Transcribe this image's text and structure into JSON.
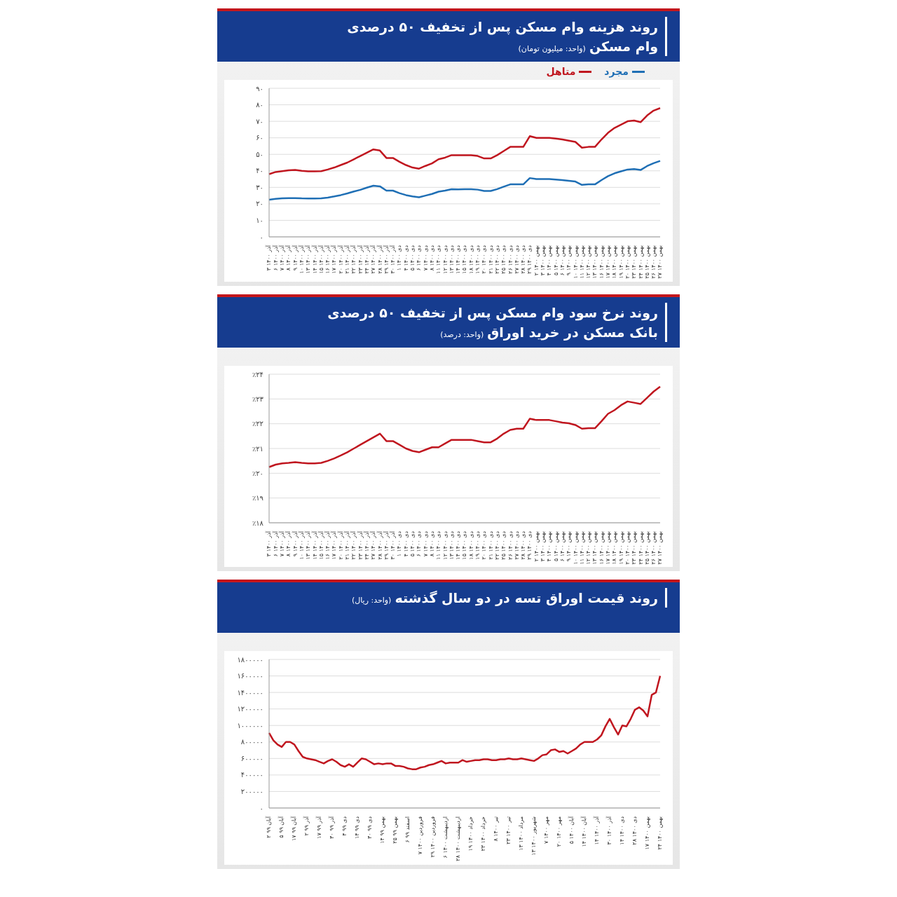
{
  "chart_data": [
    {
      "type": "line",
      "title": "روند هزینه وام مسکن پس از تخفیف ۵۰ درصدی وام مسکن",
      "subtitle": "(واحد: میلیون تومان)",
      "categories": [
        "۳ آذر ۱۴۰۰",
        "۶ آذر ۱۴۰۰",
        "۷ آذر ۱۴۰۰",
        "۸ آذر ۱۴۰۰",
        "۹ آذر ۱۴۰۰",
        "۱۰ آذر ۱۴۰۰",
        "۱۳ آذر ۱۴۰۰",
        "۱۴ آذر ۱۴۰۰",
        "۱۵ آذر ۱۴۰۰",
        "۱۶ آذر ۱۴۰۰",
        "۱۷ آذر ۱۴۰۰",
        "۲۰ آذر ۱۴۰۰",
        "۲۱ آذر ۱۴۰۰",
        "۲۲ آذر ۱۴۰۰",
        "۲۳ آذر ۱۴۰۰",
        "۲۴ آذر ۱۴۰۰",
        "۲۷ آذر ۱۴۰۰",
        "۲۸ آذر ۱۴۰۰",
        "۲۹ آذر ۱۴۰۰",
        "۳۰ آذر ۱۴۰۰",
        "۱ دی ۱۴۰۰",
        "۴ دی ۱۴۰۰",
        "۵ دی ۱۴۰۰",
        "۶ دی ۱۴۰۰",
        "۷ دی ۱۴۰۰",
        "۸ دی ۱۴۰۰",
        "۱۱ دی ۱۴۰۰",
        "۱۲ دی ۱۴۰۰",
        "۱۳ دی ۱۴۰۰",
        "۱۴ دی ۱۴۰۰",
        "۱۵ دی ۱۴۰۰",
        "۱۸ دی ۱۴۰۰",
        "۱۹ دی ۱۴۰۰",
        "۲۰ دی ۱۴۰۰",
        "۲۱ دی ۱۴۰۰",
        "۲۲ دی ۱۴۰۰",
        "۲۵ دی ۱۴۰۰",
        "۲۶ دی ۱۴۰۰",
        "۲۷ دی ۱۴۰۰",
        "۲۸ دی ۱۴۰۰",
        "۲۹ دی ۱۴۰۰",
        "۲ بهمن ۱۴۰۰",
        "۳ بهمن ۱۴۰۰",
        "۴ بهمن ۱۴۰۰",
        "۵ بهمن ۱۴۰۰",
        "۶ بهمن ۱۴۰۰",
        "۹ بهمن ۱۴۰۰",
        "۱۰ بهمن ۱۴۰۰",
        "۱۱ بهمن ۱۴۰۰",
        "۱۲ بهمن ۱۴۰۰",
        "۱۳ بهمن ۱۴۰۰",
        "۱۶ بهمن ۱۴۰۰",
        "۱۷ بهمن ۱۴۰۰",
        "۱۸ بهمن ۱۴۰۰",
        "۱۹ بهمن ۱۴۰۰",
        "۲۰ بهمن ۱۴۰۰",
        "۲۳ بهمن ۱۴۰۰",
        "۲۴ بهمن ۱۴۰۰",
        "۲۵ بهمن ۱۴۰۰",
        "۲۶ بهمن ۱۴۰۰",
        "۲۷ بهمن ۱۴۰۰"
      ],
      "series": [
        {
          "name": "مجرد",
          "color": "#1f6fb5",
          "values": [
            22.5,
            23,
            23.3,
            23.5,
            23.5,
            23.3,
            23.2,
            23.2,
            23.3,
            23.8,
            24.5,
            25.3,
            26.3,
            27.5,
            28.5,
            29.8,
            31,
            30.6,
            28,
            28,
            26.5,
            25.3,
            24.5,
            24,
            25,
            26,
            27.4,
            28,
            28.9,
            28.8,
            28.9,
            28.9,
            28.6,
            27.8,
            27.8,
            28.9,
            30.4,
            31.8,
            31.8,
            31.8,
            35.6,
            35,
            35,
            35,
            34.7,
            34.4,
            34,
            33.5,
            31.5,
            31.8,
            31.8,
            34.4,
            36.8,
            38.5,
            39.7,
            40.8,
            41.1,
            40.5,
            42.9,
            44.6,
            46
          ]
        },
        {
          "name": "متاهل",
          "color": "#c0161f",
          "values": [
            38,
            39.3,
            39.8,
            40.3,
            40.5,
            40,
            39.7,
            39.7,
            39.8,
            40.8,
            42,
            43.5,
            45,
            47,
            49,
            51,
            53,
            52.3,
            47.8,
            47.8,
            45.5,
            43.5,
            42,
            41.3,
            43,
            44.5,
            47,
            48,
            49.5,
            49.5,
            49.5,
            49.5,
            49,
            47.5,
            47.5,
            49.5,
            52,
            54.5,
            54.5,
            54.5,
            61,
            60,
            60,
            60,
            59.5,
            59,
            58.3,
            57.5,
            54,
            54.5,
            54.5,
            59,
            63,
            66,
            68,
            70,
            70.5,
            69.5,
            73.5,
            76.5,
            78
          ]
        }
      ],
      "ylim": [
        0,
        90
      ],
      "yticks": [
        {
          "value": 0,
          "label": "۰"
        },
        {
          "value": 10,
          "label": "۱۰"
        },
        {
          "value": 20,
          "label": "۲۰"
        },
        {
          "value": 30,
          "label": "۳۰"
        },
        {
          "value": 40,
          "label": "۴۰"
        },
        {
          "value": 50,
          "label": "۵۰"
        },
        {
          "value": 60,
          "label": "۶۰"
        },
        {
          "value": 70,
          "label": "۷۰"
        },
        {
          "value": 80,
          "label": "۸۰"
        },
        {
          "value": 90,
          "label": "۹۰"
        }
      ],
      "grid": "y",
      "legend": "top right"
    },
    {
      "type": "line",
      "title": "روند نرخ سود وام مسکن پس از تخفیف ۵۰ درصدی بانک مسکن در خرید اوراق",
      "subtitle": "(واحد: درصد)",
      "categories": [
        "۳ آذر ۱۴۰۰",
        "۶ آذر ۱۴۰۰",
        "۷ آذر ۱۴۰۰",
        "۸ آذر ۱۴۰۰",
        "۹ آذر ۱۴۰۰",
        "۱۰ آذر ۱۴۰۰",
        "۱۳ آذر ۱۴۰۰",
        "۱۴ آذر ۱۴۰۰",
        "۱۵ آذر ۱۴۰۰",
        "۱۶ آذر ۱۴۰۰",
        "۱۷ آذر ۱۴۰۰",
        "۲۰ آذر ۱۴۰۰",
        "۲۱ آذر ۱۴۰۰",
        "۲۲ آذر ۱۴۰۰",
        "۲۳ آذر ۱۴۰۰",
        "۲۴ آذر ۱۴۰۰",
        "۲۷ آذر ۱۴۰۰",
        "۲۸ آذر ۱۴۰۰",
        "۲۹ آذر ۱۴۰۰",
        "۳۰ آذر ۱۴۰۰",
        "۱ دی ۱۴۰۰",
        "۴ دی ۱۴۰۰",
        "۵ دی ۱۴۰۰",
        "۶ دی ۱۴۰۰",
        "۷ دی ۱۴۰۰",
        "۸ دی ۱۴۰۰",
        "۱۱ دی ۱۴۰۰",
        "۱۲ دی ۱۴۰۰",
        "۱۳ دی ۱۴۰۰",
        "۱۴ دی ۱۴۰۰",
        "۱۵ دی ۱۴۰۰",
        "۱۸ دی ۱۴۰۰",
        "۱۹ دی ۱۴۰۰",
        "۲۰ دی ۱۴۰۰",
        "۲۱ دی ۱۴۰۰",
        "۲۲ دی ۱۴۰۰",
        "۲۵ دی ۱۴۰۰",
        "۲۶ دی ۱۴۰۰",
        "۲۷ دی ۱۴۰۰",
        "۲۸ دی ۱۴۰۰",
        "۲۹ دی ۱۴۰۰",
        "۲ بهمن ۱۴۰۰",
        "۳ بهمن ۱۴۰۰",
        "۴ بهمن ۱۴۰۰",
        "۵ بهمن ۱۴۰۰",
        "۶ بهمن ۱۴۰۰",
        "۹ بهمن ۱۴۰۰",
        "۱۰ بهمن ۱۴۰۰",
        "۱۱ بهمن ۱۴۰۰",
        "۱۲ بهمن ۱۴۰۰",
        "۱۳ بهمن ۱۴۰۰",
        "۱۶ بهمن ۱۴۰۰",
        "۱۷ بهمن ۱۴۰۰",
        "۱۸ بهمن ۱۴۰۰",
        "۱۹ بهمن ۱۴۰۰",
        "۲۰ بهمن ۱۴۰۰",
        "۲۳ بهمن ۱۴۰۰",
        "۲۴ بهمن ۱۴۰۰",
        "۲۵ بهمن ۱۴۰۰",
        "۲۶ بهمن ۱۴۰۰",
        "۲۷ بهمن ۱۴۰۰"
      ],
      "series": [
        {
          "color": "#c0161f",
          "values": [
            20.25,
            20.35,
            20.4,
            20.42,
            20.45,
            20.42,
            20.4,
            20.4,
            20.42,
            20.5,
            20.6,
            20.72,
            20.85,
            21,
            21.15,
            21.3,
            21.45,
            21.6,
            21.3,
            21.3,
            21.15,
            21,
            20.9,
            20.85,
            20.95,
            21.05,
            21.05,
            21.2,
            21.35,
            21.35,
            21.35,
            21.35,
            21.3,
            21.25,
            21.25,
            21.4,
            21.6,
            21.75,
            21.8,
            21.8,
            22.2,
            22.15,
            22.15,
            22.15,
            22.1,
            22.05,
            22.02,
            21.95,
            21.8,
            21.82,
            21.82,
            22.1,
            22.4,
            22.55,
            22.75,
            22.9,
            22.85,
            22.8,
            23.05,
            23.3,
            23.5
          ]
        }
      ],
      "ylim": [
        18,
        24
      ],
      "yticks": [
        {
          "value": 18,
          "label": "٪۱۸"
        },
        {
          "value": 19,
          "label": "٪۱۹"
        },
        {
          "value": 20,
          "label": "٪۲۰"
        },
        {
          "value": 21,
          "label": "٪۲۱"
        },
        {
          "value": 22,
          "label": "٪۲۲"
        },
        {
          "value": 23,
          "label": "٪۲۳"
        },
        {
          "value": 24,
          "label": "٪۲۴"
        }
      ],
      "grid": "y"
    },
    {
      "type": "line",
      "title": "روند قیمت اوراق تسه در دو سال گذشته",
      "subtitle": "(واحد: ریال)",
      "series": [
        {
          "color": "#c0161f",
          "values": [
            910000,
            820000,
            770000,
            740000,
            800000,
            800000,
            770000,
            690000,
            620000,
            600000,
            590000,
            580000,
            560000,
            540000,
            570000,
            590000,
            560000,
            520000,
            500000,
            530000,
            500000,
            550000,
            600000,
            590000,
            560000,
            530000,
            540000,
            530000,
            540000,
            540000,
            510000,
            510000,
            500000,
            480000,
            470000,
            470000,
            490000,
            500000,
            520000,
            530000,
            550000,
            570000,
            540000,
            550000,
            550000,
            550000,
            580000,
            560000,
            570000,
            580000,
            580000,
            590000,
            590000,
            580000,
            580000,
            590000,
            590000,
            600000,
            590000,
            590000,
            600000,
            590000,
            580000,
            570000,
            600000,
            640000,
            650000,
            700000,
            710000,
            680000,
            690000,
            660000,
            690000,
            720000,
            770000,
            800000,
            800000,
            800000,
            830000,
            880000,
            990000,
            1080000,
            980000,
            890000,
            1000000,
            990000,
            1080000,
            1190000,
            1220000,
            1180000,
            1110000,
            1370000,
            1400000,
            1600000
          ]
        }
      ],
      "categories": [
        "۲ آبان ۹۹",
        null,
        null,
        "۵ آبان ۹۹",
        null,
        null,
        "۱۷ آبان ۹۹",
        null,
        null,
        "۲ آذر ۹۹",
        null,
        null,
        "۱۷ آذر ۹۹",
        null,
        null,
        "۳۰ آذر ۹۹",
        null,
        null,
        "۴ دی ۹۹",
        null,
        null,
        "۱۴ دی ۹۹",
        null,
        null,
        "۳۰ دی ۹۹",
        null,
        null,
        "۱۴ بهمن ۹۹",
        null,
        null,
        "۲۵ بهمن ۹۹",
        null,
        null,
        "۶ اسفند ۹۹",
        null,
        null,
        "۷ فروردین ۱۴۰۰",
        null,
        null,
        "۲۹ فروردین ۱۴۰۰",
        null,
        null,
        "۶ اردیبهشت ۱۴۰۰",
        null,
        null,
        "۲۸ اردیبهشت ۱۴۰۰",
        null,
        null,
        "۱۹ خرداد ۱۴۰۰",
        null,
        null,
        "۲۳ خرداد ۱۴۰۰",
        null,
        null,
        "۸ تیر ۱۴۰۰",
        null,
        null,
        "۲۳ تیر ۱۴۰۰",
        null,
        null,
        "۱۳ مرداد ۱۴۰۰",
        null,
        null,
        "۱۳ شهریور ۱۴۰۰",
        null,
        null,
        "۷ مهر ۱۴۰۰",
        null,
        null,
        "۲۰ مهر ۱۴۰۰",
        null,
        null,
        "۵ آبان ۱۴۰۰",
        null,
        null,
        "۱۴ آبان ۱۴۰۰",
        null,
        null,
        "۱۴ آذر ۱۴۰۰",
        null,
        null,
        "۳۰ آذر ۱۴۰۰",
        null,
        null,
        "۱۴ دی ۱۴۰۰",
        null,
        null,
        "۲۸ دی ۱۴۰۰",
        null,
        null,
        "۱۷ بهمن ۱۴۰۰",
        null,
        null,
        "۲۴ بهمن ۱۴۰۰"
      ],
      "ylim": [
        0,
        1800000
      ],
      "yticks": [
        {
          "value": 0,
          "label": "۰"
        },
        {
          "value": 200000,
          "label": "۲۰۰۰۰۰"
        },
        {
          "value": 400000,
          "label": "۴۰۰۰۰۰"
        },
        {
          "value": 600000,
          "label": "۶۰۰۰۰۰"
        },
        {
          "value": 800000,
          "label": "۸۰۰۰۰۰"
        },
        {
          "value": 1000000,
          "label": "۱۰۰۰۰۰۰"
        },
        {
          "value": 1200000,
          "label": "۱۲۰۰۰۰۰"
        },
        {
          "value": 1400000,
          "label": "۱۴۰۰۰۰۰"
        },
        {
          "value": 1600000,
          "label": "۱۶۰۰۰۰۰"
        },
        {
          "value": 1800000,
          "label": "۱۸۰۰۰۰۰"
        }
      ],
      "grid": "y"
    }
  ]
}
